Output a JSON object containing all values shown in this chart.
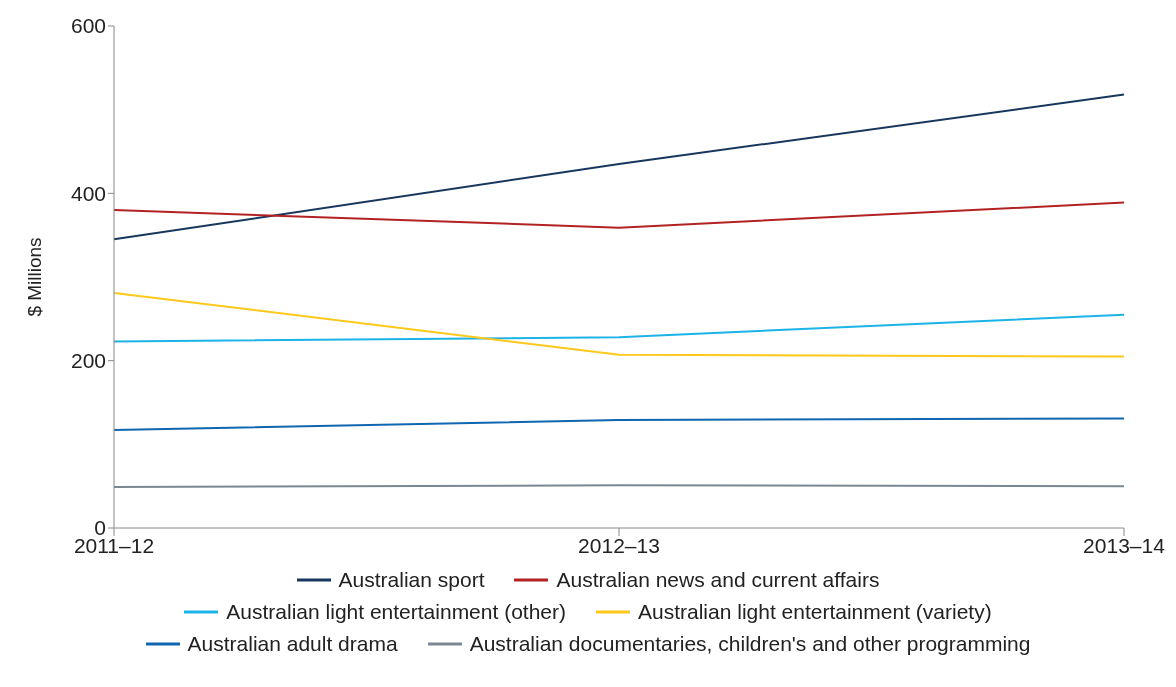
{
  "chart_data": {
    "type": "line",
    "ylabel": "$ Millions",
    "categories": [
      "2011–12",
      "2012–13",
      "2013–14"
    ],
    "series": [
      {
        "name": "Australian sport",
        "color": "#17375e",
        "values": [
          345,
          435,
          518
        ]
      },
      {
        "name": "Australian news and current affairs",
        "color": "#b22222",
        "values": [
          380,
          359,
          389
        ]
      },
      {
        "name": "Australian light entertainment (other)",
        "color": "#1cb4e8",
        "values": [
          223,
          228,
          255
        ]
      },
      {
        "name": "Australian light entertainment (variety)",
        "color": "#ffc81a",
        "values": [
          281,
          207,
          205
        ]
      },
      {
        "name": "Australian adult drama",
        "color": "#0f67b1",
        "values": [
          117,
          129,
          131
        ]
      },
      {
        "name": "Australian documentaries, children's and other programming",
        "color": "#7b8791",
        "values": [
          49,
          51,
          50
        ]
      }
    ],
    "ylim": [
      0,
      600
    ],
    "yticks": [
      0,
      200,
      400,
      600
    ],
    "grid": false,
    "legend": "bottom",
    "marker": "none",
    "line_style": "solid"
  }
}
